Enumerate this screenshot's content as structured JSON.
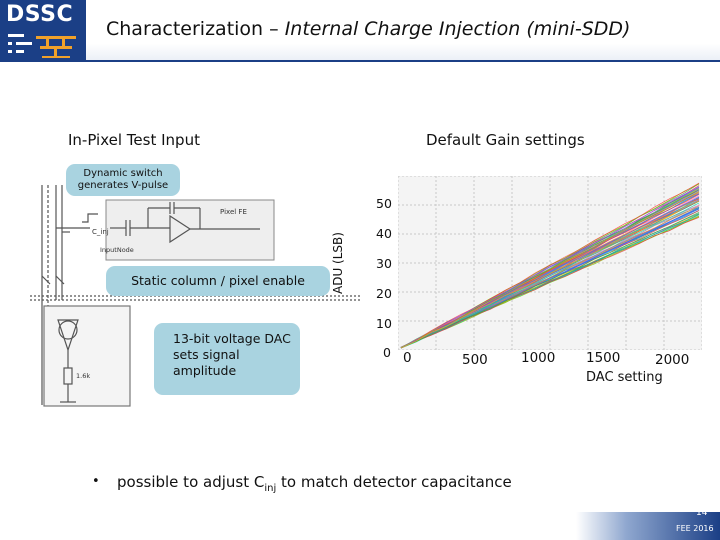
{
  "header": {
    "logo_text": "DSSC",
    "title_prefix": "Characterization – ",
    "title_italic": "Internal Charge Injection (mini-SDD)",
    "brand_color": "#1b3f86"
  },
  "left_heading": "In-Pixel Test Input",
  "right_heading": "Default Gain settings",
  "callouts": {
    "dynamic_switch": "Dynamic switch generates V-pulse",
    "static_enable": "Static column / pixel enable",
    "dac": "13-bit  voltage DAC sets signal amplitude",
    "color": "#a9d3e0"
  },
  "schematic": {
    "pixel_fe_label": "Pixel FE",
    "cinj_label": "C_inj",
    "input_node_label": "InputNode",
    "resistor_label": "1.6k"
  },
  "bullet": {
    "marker": "•",
    "text_before": "possible to adjust C",
    "subscript": "inj",
    "text_after": " to match detector capacitance"
  },
  "footer": {
    "page_number": "14",
    "note": "FEE 2016"
  },
  "chart_data": {
    "type": "line",
    "title": "Default Gain settings",
    "xlabel": "DAC setting",
    "ylabel": "ADU (LSB)",
    "x_ticks": [
      "0",
      "500",
      "1000",
      "1500",
      "2000"
    ],
    "y_ticks": [
      "0",
      "10",
      "20",
      "30",
      "40",
      "50"
    ],
    "xlim": [
      0,
      2000
    ],
    "ylim": [
      0,
      50
    ],
    "grid": true,
    "series_description_count": 60,
    "envelope": {
      "x": [
        0,
        2000
      ],
      "y_min_at_max": 44,
      "y_max_at_max": 56
    }
  }
}
